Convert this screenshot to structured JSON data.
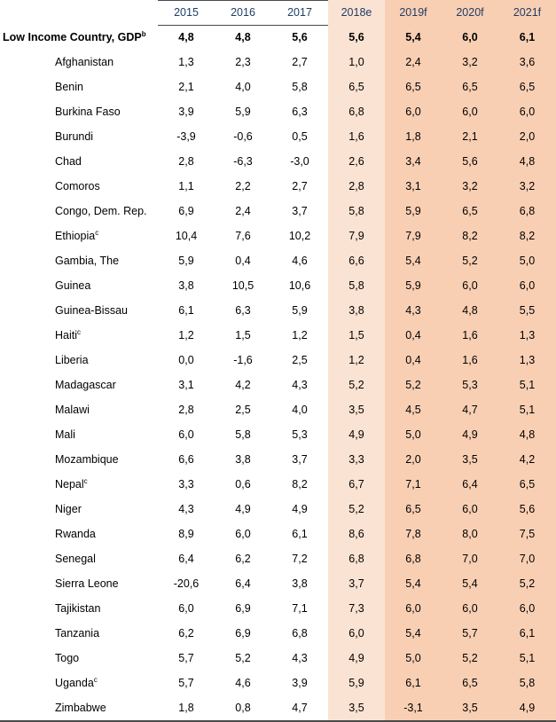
{
  "header": {
    "label": "",
    "years": [
      "2015",
      "2016",
      "2017",
      "2018e",
      "2019f",
      "2020f",
      "2021f"
    ]
  },
  "summary": {
    "name": "Low Income Country, GDP",
    "sup": "b",
    "values": [
      "4,8",
      "4,8",
      "5,6",
      "5,6",
      "5,4",
      "6,0",
      "6,1"
    ]
  },
  "rows": [
    {
      "name": "Afghanistan",
      "sup": "",
      "values": [
        "1,3",
        "2,3",
        "2,7",
        "1,0",
        "2,4",
        "3,2",
        "3,6"
      ]
    },
    {
      "name": "Benin",
      "sup": "",
      "values": [
        "2,1",
        "4,0",
        "5,8",
        "6,5",
        "6,5",
        "6,5",
        "6,5"
      ]
    },
    {
      "name": "Burkina Faso",
      "sup": "",
      "values": [
        "3,9",
        "5,9",
        "6,3",
        "6,8",
        "6,0",
        "6,0",
        "6,0"
      ]
    },
    {
      "name": "Burundi",
      "sup": "",
      "values": [
        "-3,9",
        "-0,6",
        "0,5",
        "1,6",
        "1,8",
        "2,1",
        "2,0"
      ]
    },
    {
      "name": "Chad",
      "sup": "",
      "values": [
        "2,8",
        "-6,3",
        "-3,0",
        "2,6",
        "3,4",
        "5,6",
        "4,8"
      ]
    },
    {
      "name": "Comoros",
      "sup": "",
      "values": [
        "1,1",
        "2,2",
        "2,7",
        "2,8",
        "3,1",
        "3,2",
        "3,2"
      ]
    },
    {
      "name": "Congo, Dem. Rep.",
      "sup": "",
      "values": [
        "6,9",
        "2,4",
        "3,7",
        "5,8",
        "5,9",
        "6,5",
        "6,8"
      ]
    },
    {
      "name": "Ethiopia",
      "sup": "c",
      "values": [
        "10,4",
        "7,6",
        "10,2",
        "7,9",
        "7,9",
        "8,2",
        "8,2"
      ]
    },
    {
      "name": "Gambia, The",
      "sup": "",
      "values": [
        "5,9",
        "0,4",
        "4,6",
        "6,6",
        "5,4",
        "5,2",
        "5,0"
      ]
    },
    {
      "name": "Guinea",
      "sup": "",
      "values": [
        "3,8",
        "10,5",
        "10,6",
        "5,8",
        "5,9",
        "6,0",
        "6,0"
      ]
    },
    {
      "name": "Guinea-Bissau",
      "sup": "",
      "values": [
        "6,1",
        "6,3",
        "5,9",
        "3,8",
        "4,3",
        "4,8",
        "5,5"
      ]
    },
    {
      "name": "Haiti",
      "sup": "c",
      "values": [
        "1,2",
        "1,5",
        "1,2",
        "1,5",
        "0,4",
        "1,6",
        "1,3"
      ]
    },
    {
      "name": "Liberia",
      "sup": "",
      "values": [
        "0,0",
        "-1,6",
        "2,5",
        "1,2",
        "0,4",
        "1,6",
        "1,3"
      ]
    },
    {
      "name": "Madagascar",
      "sup": "",
      "values": [
        "3,1",
        "4,2",
        "4,3",
        "5,2",
        "5,2",
        "5,3",
        "5,1"
      ]
    },
    {
      "name": "Malawi",
      "sup": "",
      "values": [
        "2,8",
        "2,5",
        "4,0",
        "3,5",
        "4,5",
        "4,7",
        "5,1"
      ]
    },
    {
      "name": "Mali",
      "sup": "",
      "values": [
        "6,0",
        "5,8",
        "5,3",
        "4,9",
        "5,0",
        "4,9",
        "4,8"
      ]
    },
    {
      "name": "Mozambique",
      "sup": "",
      "values": [
        "6,6",
        "3,8",
        "3,7",
        "3,3",
        "2,0",
        "3,5",
        "4,2"
      ]
    },
    {
      "name": "Nepal",
      "sup": "c",
      "values": [
        "3,3",
        "0,6",
        "8,2",
        "6,7",
        "7,1",
        "6,4",
        "6,5"
      ]
    },
    {
      "name": "Niger",
      "sup": "",
      "values": [
        "4,3",
        "4,9",
        "4,9",
        "5,2",
        "6,5",
        "6,0",
        "5,6"
      ]
    },
    {
      "name": "Rwanda",
      "sup": "",
      "values": [
        "8,9",
        "6,0",
        "6,1",
        "8,6",
        "7,8",
        "8,0",
        "7,5"
      ]
    },
    {
      "name": "Senegal",
      "sup": "",
      "values": [
        "6,4",
        "6,2",
        "7,2",
        "6,8",
        "6,8",
        "7,0",
        "7,0"
      ]
    },
    {
      "name": "Sierra Leone",
      "sup": "",
      "values": [
        "-20,6",
        "6,4",
        "3,8",
        "3,7",
        "5,4",
        "5,4",
        "5,2"
      ]
    },
    {
      "name": "Tajikistan",
      "sup": "",
      "values": [
        "6,0",
        "6,9",
        "7,1",
        "7,3",
        "6,0",
        "6,0",
        "6,0"
      ]
    },
    {
      "name": "Tanzania",
      "sup": "",
      "values": [
        "6,2",
        "6,9",
        "6,8",
        "6,0",
        "5,4",
        "5,7",
        "6,1"
      ]
    },
    {
      "name": "Togo",
      "sup": "",
      "values": [
        "5,7",
        "5,2",
        "4,3",
        "4,9",
        "5,0",
        "5,2",
        "5,1"
      ]
    },
    {
      "name": "Uganda",
      "sup": "c",
      "values": [
        "5,7",
        "4,6",
        "3,9",
        "5,9",
        "6,1",
        "6,5",
        "5,8"
      ]
    },
    {
      "name": "Zimbabwe",
      "sup": "",
      "values": [
        "1,8",
        "0,8",
        "4,7",
        "3,5",
        "-3,1",
        "3,5",
        "4,9"
      ]
    }
  ]
}
